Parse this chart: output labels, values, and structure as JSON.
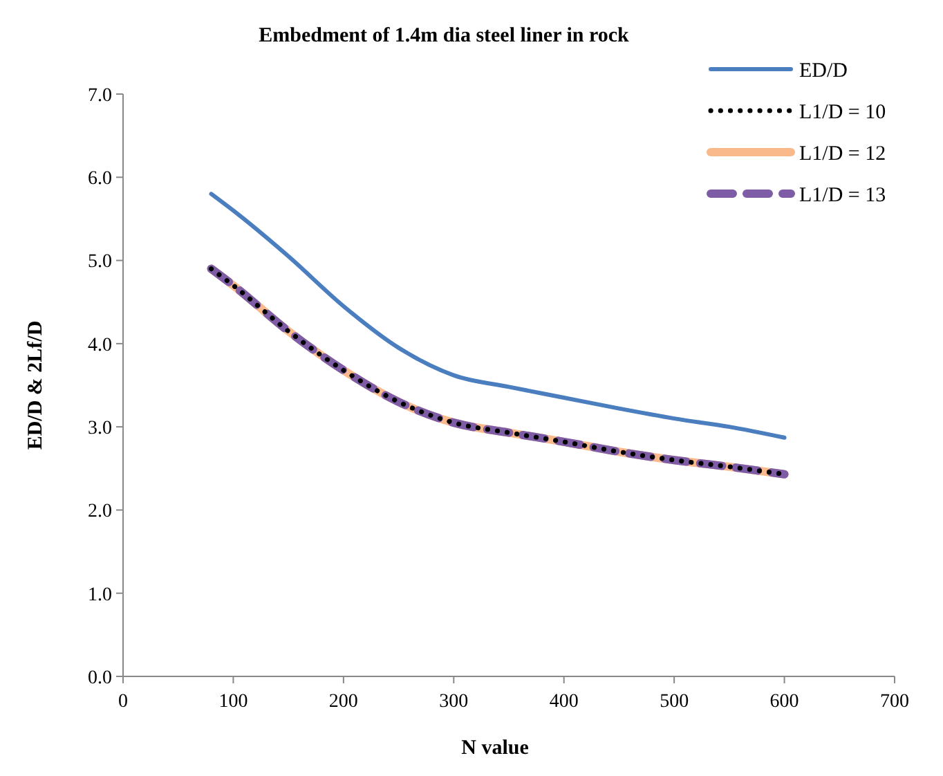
{
  "chart_data": {
    "type": "line",
    "title": "Embedment of 1.4m dia steel liner  in rock",
    "xlabel": "N value",
    "ylabel": "ED/D & 2Lf/D",
    "x": [
      80,
      100,
      150,
      200,
      250,
      300,
      350,
      400,
      450,
      500,
      550,
      600
    ],
    "series": [
      {
        "name": "ED/D",
        "color": "#4a7ebf",
        "line_style": "solid",
        "values": [
          5.8,
          5.6,
          5.05,
          4.45,
          3.95,
          3.62,
          3.48,
          3.35,
          3.22,
          3.1,
          3.0,
          2.87
        ]
      },
      {
        "name": "L1/D = 10",
        "color": "#000000",
        "line_style": "dotted",
        "values": [
          4.9,
          4.7,
          4.15,
          3.68,
          3.3,
          3.05,
          2.93,
          2.82,
          2.7,
          2.6,
          2.52,
          2.43
        ]
      },
      {
        "name": "L1/D = 12",
        "color": "#f9b98a",
        "line_style": "solid",
        "values": [
          4.9,
          4.7,
          4.15,
          3.68,
          3.3,
          3.05,
          2.93,
          2.82,
          2.7,
          2.6,
          2.52,
          2.43
        ]
      },
      {
        "name": "L1/D = 13",
        "color": "#7e5ca6",
        "line_style": "dashed",
        "values": [
          4.9,
          4.7,
          4.15,
          3.68,
          3.3,
          3.05,
          2.93,
          2.82,
          2.7,
          2.6,
          2.52,
          2.43
        ]
      }
    ],
    "xlim": [
      0,
      700
    ],
    "xticks": [
      0,
      100,
      200,
      300,
      400,
      500,
      600,
      700
    ],
    "ylim": [
      0,
      7
    ],
    "yticks": [
      {
        "value": 0,
        "label": "0.0"
      },
      {
        "value": 1,
        "label": "1.0"
      },
      {
        "value": 2,
        "label": "2.0"
      },
      {
        "value": 3,
        "label": "3.0"
      },
      {
        "value": 4,
        "label": "4.0"
      },
      {
        "value": 5,
        "label": "5.0"
      },
      {
        "value": 6,
        "label": "6.0"
      },
      {
        "value": 7,
        "label": "7.0"
      }
    ],
    "grid": false,
    "legend": "top right"
  }
}
